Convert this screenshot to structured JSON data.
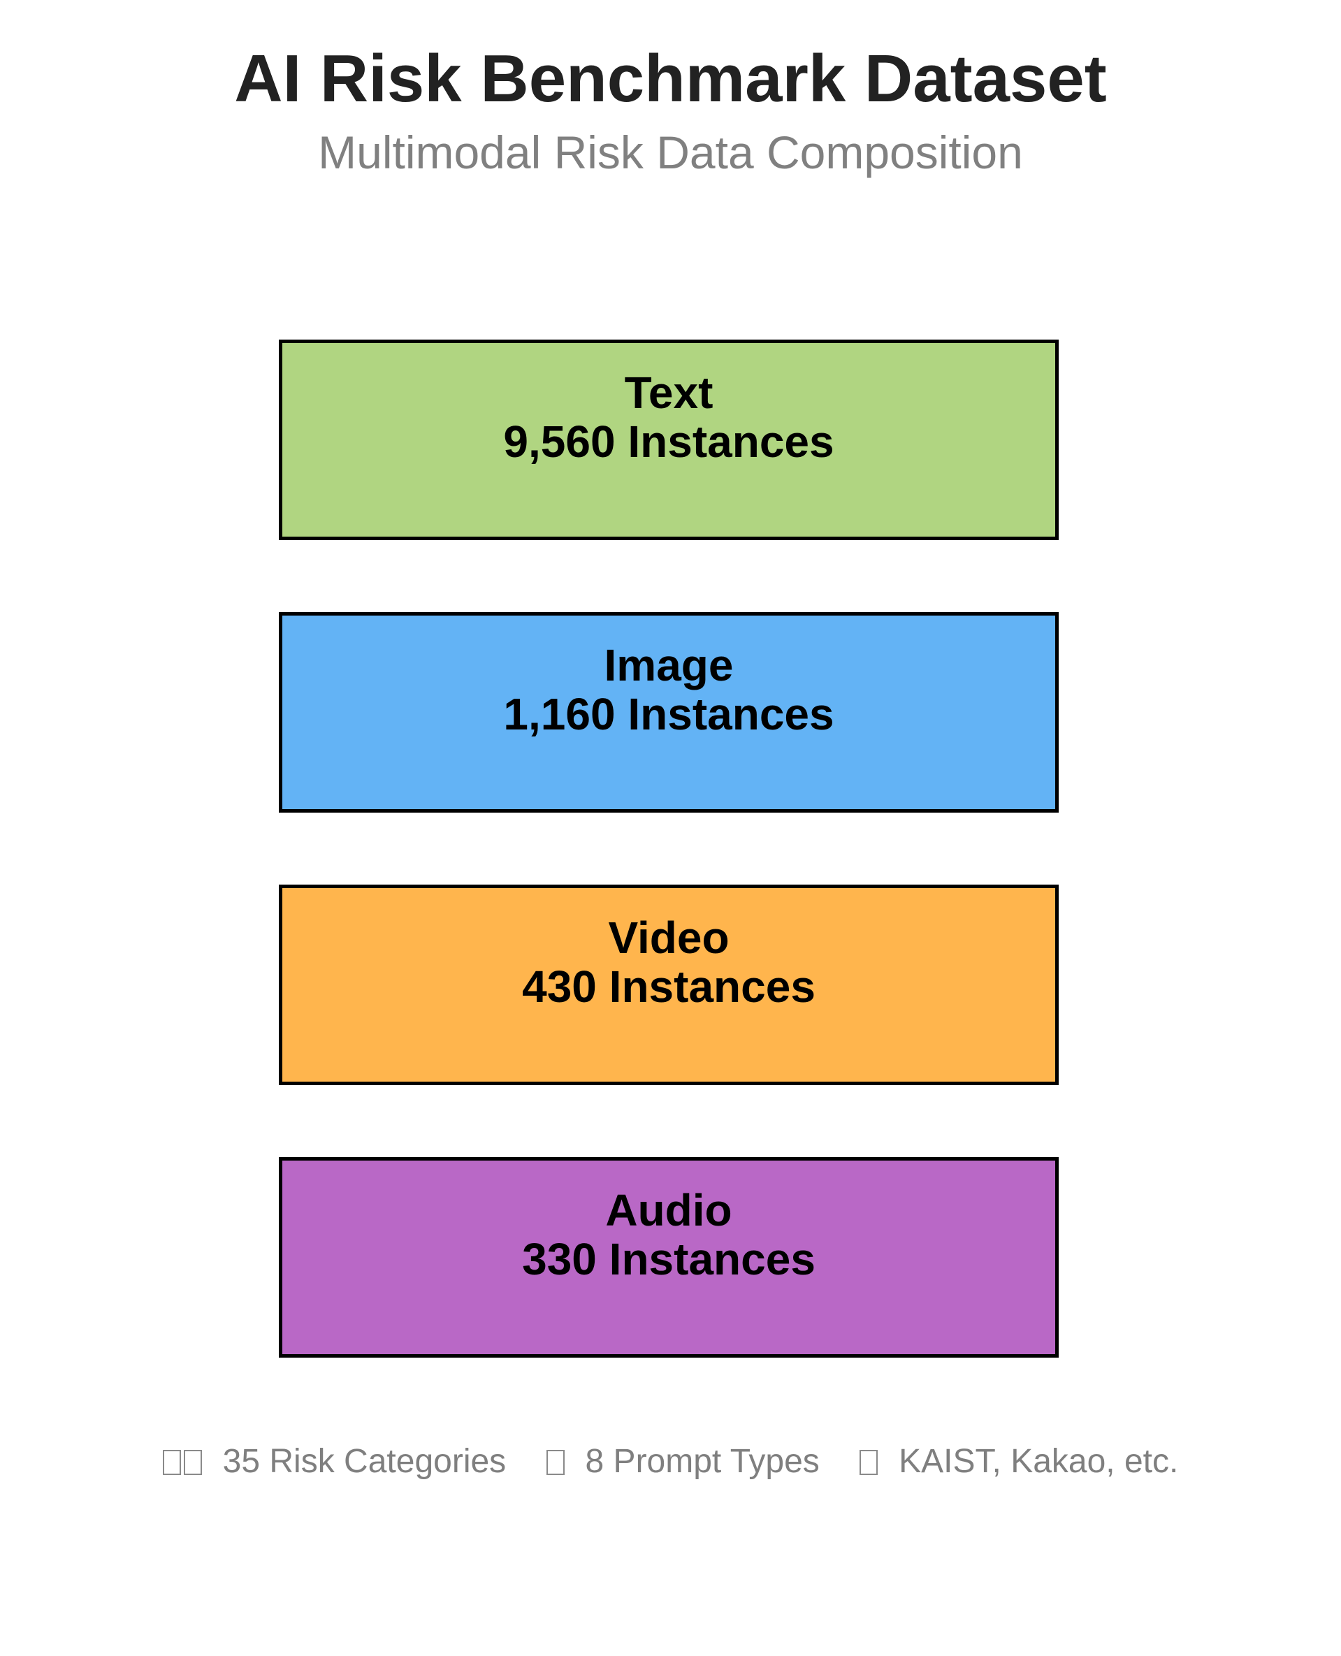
{
  "header": {
    "title": "AI Risk Benchmark Dataset",
    "subtitle": "Multimodal Risk Data Composition"
  },
  "modalities": [
    {
      "name": "Text",
      "count_label": "9,560 Instances",
      "count": 9560,
      "color": "#B0D581"
    },
    {
      "name": "Image",
      "count_label": "1,160 Instances",
      "count": 1160,
      "color": "#63B3F5"
    },
    {
      "name": "Video",
      "count_label": "430 Instances",
      "count": 430,
      "color": "#FFB54D"
    },
    {
      "name": "Audio",
      "count_label": "330 Instances",
      "count": 330,
      "color": "#B968C6"
    }
  ],
  "footer": {
    "items": [
      {
        "icon": "missing-glyph-icon",
        "glyph_count": 2,
        "label": "35 Risk Categories"
      },
      {
        "icon": "missing-glyph-icon",
        "glyph_count": 1,
        "label": "8 Prompt Types"
      },
      {
        "icon": "missing-glyph-icon",
        "glyph_count": 1,
        "label": "KAIST, Kakao, etc."
      }
    ]
  }
}
